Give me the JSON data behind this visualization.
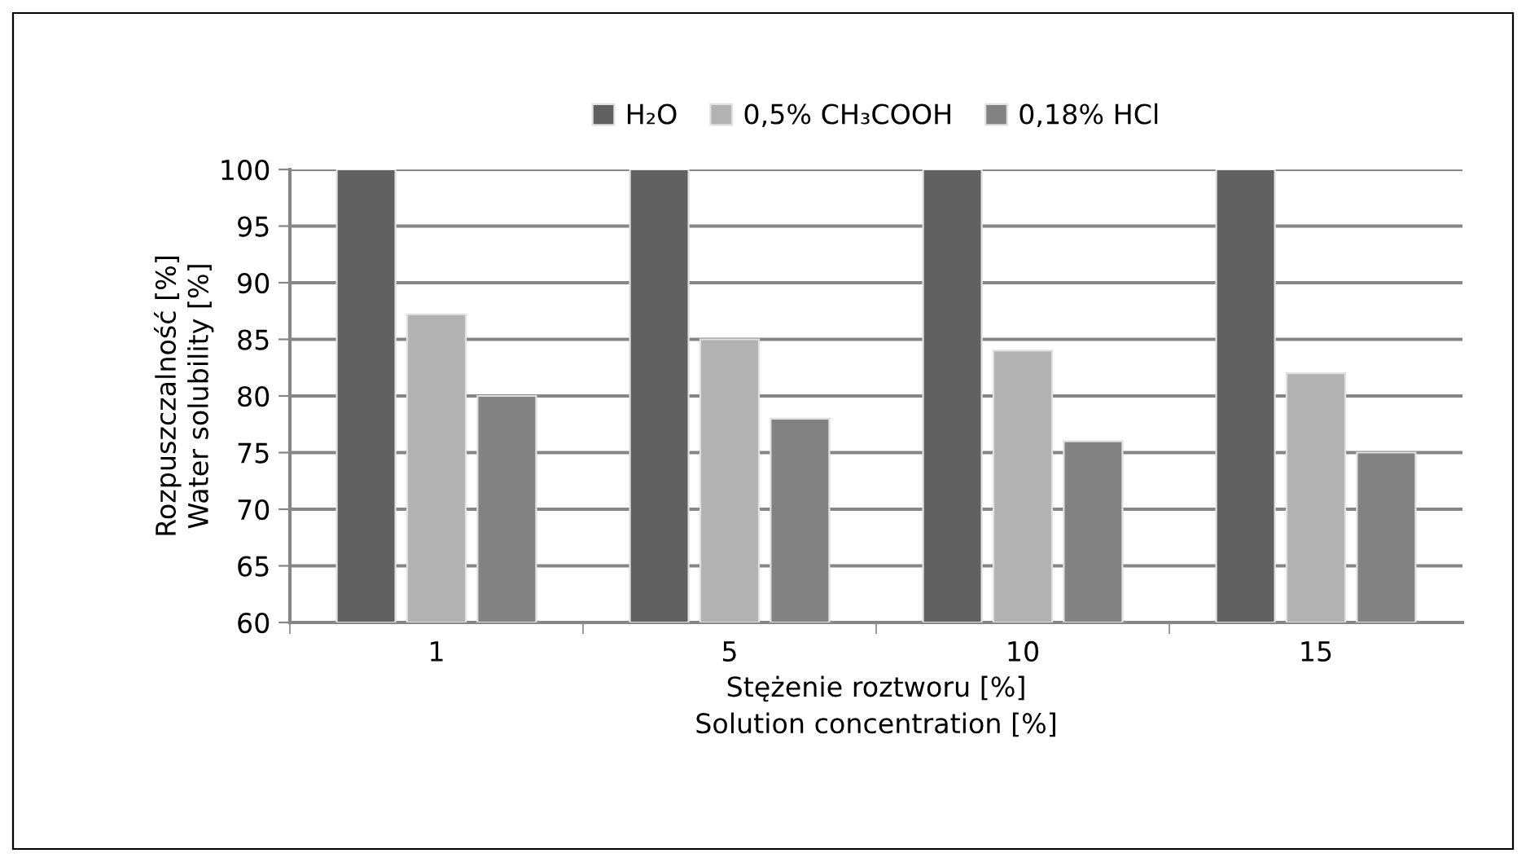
{
  "chart_data": {
    "type": "bar",
    "xlabel": "Stężenie roztworu [%]\nSolution concentration [%]",
    "ylabel": "Rozpuszczalność [%]\nWater solubility [%]",
    "categories": [
      "1",
      "5",
      "10",
      "15"
    ],
    "series": [
      {
        "name": "H₂O",
        "color": "#616161",
        "values": [
          100,
          100,
          100,
          100
        ]
      },
      {
        "name": "0,5% CH₃COOH",
        "color": "#b2b2b2",
        "values": [
          87.2,
          85,
          84,
          82
        ]
      },
      {
        "name": "0,18% HCl",
        "color": "#818281",
        "values": [
          80,
          78,
          76,
          75
        ]
      }
    ],
    "ylim": [
      60,
      100
    ],
    "yticks": [
      60,
      65,
      70,
      75,
      80,
      85,
      90,
      95,
      100
    ],
    "grid": "y",
    "legend": "top"
  }
}
